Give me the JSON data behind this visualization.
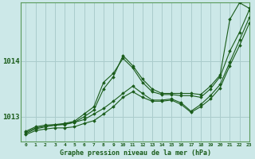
{
  "title": "Graphe pression niveau de la mer (hPa)",
  "bg_color": "#cce8e8",
  "grid_color": "#aacccc",
  "line_color": "#1a5c1a",
  "marker_color": "#1a5c1a",
  "xlim": [
    -0.5,
    23
  ],
  "ylim": [
    1012.55,
    1015.05
  ],
  "yticks": [
    1013,
    1014
  ],
  "xticks": [
    0,
    1,
    2,
    3,
    4,
    5,
    6,
    7,
    8,
    9,
    10,
    11,
    12,
    13,
    14,
    15,
    16,
    17,
    18,
    19,
    20,
    21,
    22,
    23
  ],
  "series": [
    [
      1012.68,
      1012.75,
      1012.78,
      1012.8,
      1012.8,
      1012.82,
      1012.88,
      1012.93,
      1013.05,
      1013.18,
      1013.35,
      1013.45,
      1013.35,
      1013.28,
      1013.28,
      1013.3,
      1013.22,
      1013.08,
      1013.18,
      1013.32,
      1013.52,
      1013.92,
      1014.28,
      1014.68
    ],
    [
      1012.7,
      1012.78,
      1012.82,
      1012.85,
      1012.86,
      1012.9,
      1012.95,
      1013.05,
      1013.15,
      1013.28,
      1013.42,
      1013.55,
      1013.42,
      1013.3,
      1013.3,
      1013.32,
      1013.25,
      1013.1,
      1013.22,
      1013.38,
      1013.58,
      1013.98,
      1014.38,
      1014.78
    ],
    [
      1012.72,
      1012.8,
      1012.83,
      1012.85,
      1012.87,
      1012.9,
      1013.0,
      1013.12,
      1013.5,
      1013.72,
      1014.1,
      1013.92,
      1013.68,
      1013.5,
      1013.42,
      1013.42,
      1013.42,
      1013.42,
      1013.4,
      1013.55,
      1013.75,
      1014.75,
      1015.05,
      1014.95
    ],
    [
      1012.74,
      1012.82,
      1012.85,
      1012.86,
      1012.88,
      1012.92,
      1013.05,
      1013.18,
      1013.62,
      1013.78,
      1014.05,
      1013.88,
      1013.62,
      1013.45,
      1013.4,
      1013.4,
      1013.38,
      1013.38,
      1013.35,
      1013.5,
      1013.72,
      1014.18,
      1014.52,
      1014.92
    ]
  ]
}
